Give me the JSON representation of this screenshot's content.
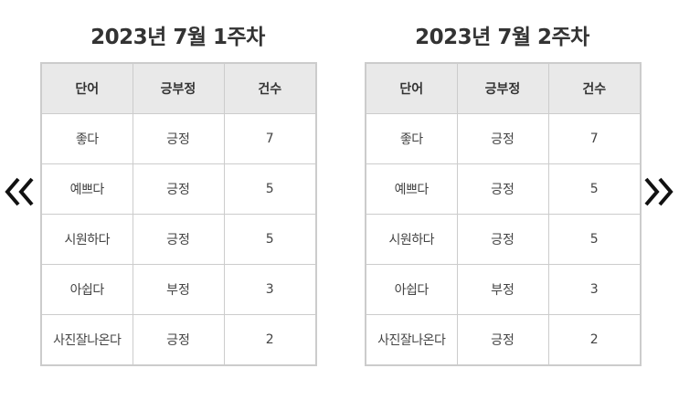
{
  "navigation": {
    "prev_icon": "double-chevron-left-icon",
    "next_icon": "double-chevron-right-icon"
  },
  "table_headers": {
    "word": "단어",
    "sentiment": "긍부정",
    "count": "건수"
  },
  "weeks": [
    {
      "title": "2023년 7월 1주차",
      "rows": [
        {
          "word": "좋다",
          "sentiment": "긍정",
          "count": "7"
        },
        {
          "word": "예쁘다",
          "sentiment": "긍정",
          "count": "5"
        },
        {
          "word": "시원하다",
          "sentiment": "긍정",
          "count": "5"
        },
        {
          "word": "아쉽다",
          "sentiment": "부정",
          "count": "3"
        },
        {
          "word": "사진잘나온다",
          "sentiment": "긍정",
          "count": "2"
        }
      ]
    },
    {
      "title": "2023년 7월 2주차",
      "rows": [
        {
          "word": "좋다",
          "sentiment": "긍정",
          "count": "7"
        },
        {
          "word": "예쁘다",
          "sentiment": "긍정",
          "count": "5"
        },
        {
          "word": "시원하다",
          "sentiment": "긍정",
          "count": "5"
        },
        {
          "word": "아쉽다",
          "sentiment": "부정",
          "count": "3"
        },
        {
          "word": "사진잘나온다",
          "sentiment": "긍정",
          "count": "2"
        }
      ]
    }
  ],
  "colors": {
    "header_bg": "#e9e9e9",
    "border": "#cccccc",
    "text": "#333333"
  }
}
